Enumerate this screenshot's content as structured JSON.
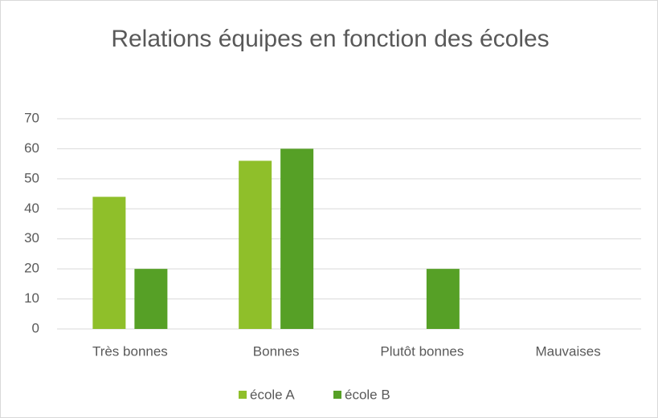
{
  "chart_data": {
    "type": "bar",
    "title": "Relations équipes en fonction des écoles",
    "categories": [
      "Très bonnes",
      "Bonnes",
      "Plutôt bonnes",
      "Mauvaises"
    ],
    "series": [
      {
        "name": "école A",
        "color": "#8fbf2a",
        "values": [
          44,
          56,
          0,
          0
        ]
      },
      {
        "name": "école B",
        "color": "#56a026",
        "values": [
          20,
          60,
          20,
          0
        ]
      }
    ],
    "ylim": [
      0,
      70
    ],
    "yticks": [
      0,
      10,
      20,
      30,
      40,
      50,
      60,
      70
    ],
    "grid": true,
    "legend": "bottom"
  }
}
